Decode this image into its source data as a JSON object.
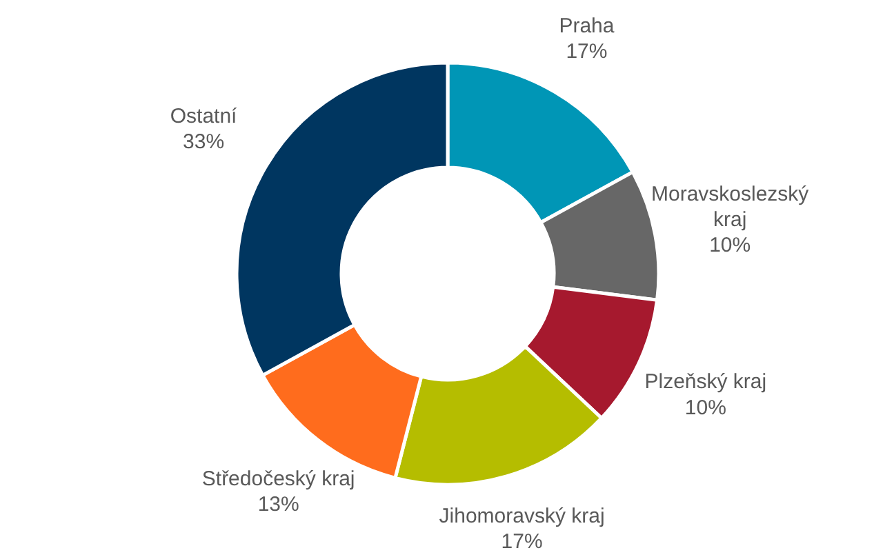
{
  "chart_data": {
    "type": "donut",
    "categories": [
      "Praha",
      "Moravskoslezský kraj",
      "Plzeňský kraj",
      "Jihomoravský kraj",
      "Středočeský kraj",
      "Ostatní"
    ],
    "values": [
      17,
      10,
      10,
      17,
      13,
      33
    ],
    "value_labels": [
      "17%",
      "10%",
      "10%",
      "17%",
      "13%",
      "33%"
    ],
    "colors": [
      "#0096b6",
      "#676767",
      "#a6192e",
      "#b5bd00",
      "#ff6c1d",
      "#003660"
    ]
  }
}
